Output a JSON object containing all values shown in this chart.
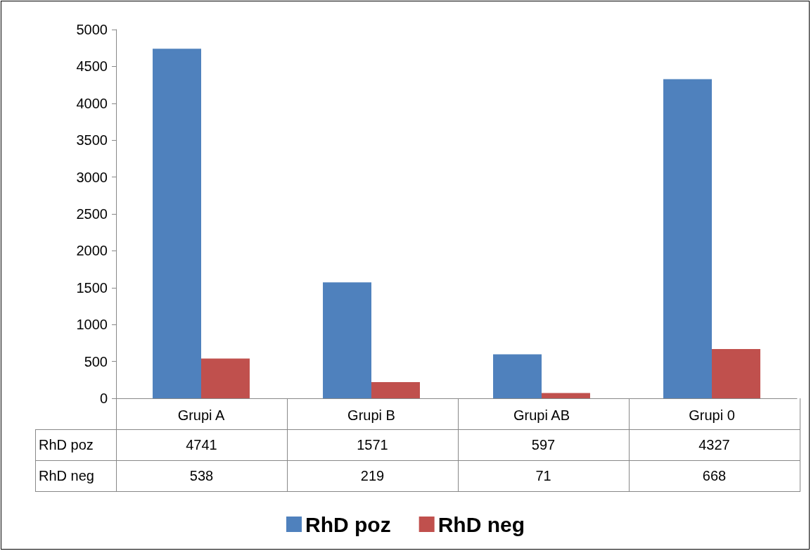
{
  "chart_data": {
    "type": "bar",
    "categories": [
      "Grupi A",
      "Grupi B",
      "Grupi AB",
      "Grupi 0"
    ],
    "series": [
      {
        "name": "RhD poz",
        "color": "#4f81bd",
        "values": [
          4741,
          1571,
          597,
          4327
        ]
      },
      {
        "name": "RhD neg",
        "color": "#c0504d",
        "values": [
          538,
          219,
          71,
          668
        ]
      }
    ],
    "ylim": [
      0,
      5000
    ],
    "yticks": [
      0,
      500,
      1000,
      1500,
      2000,
      2500,
      3000,
      3500,
      4000,
      4500,
      5000
    ],
    "grid": false,
    "legend": "bottom",
    "data_labels": true
  }
}
